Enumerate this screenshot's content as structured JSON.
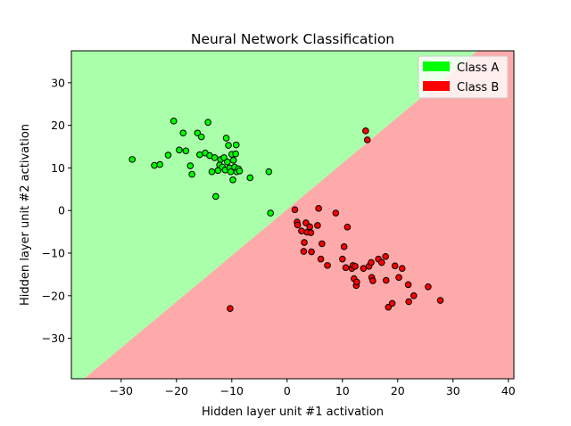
{
  "chart_data": {
    "type": "scatter",
    "title": "Neural Network Classification",
    "xlabel": "Hidden layer unit #1 activation",
    "ylabel": "Hidden layer unit #2 activation",
    "xlim": [
      -39,
      41
    ],
    "ylim": [
      -39.5,
      37.5
    ],
    "xticks": [
      -30,
      -20,
      -10,
      0,
      10,
      20,
      30,
      40
    ],
    "yticks": [
      -30,
      -20,
      -10,
      0,
      10,
      20,
      30
    ],
    "grid": false,
    "legend_position": "top-right",
    "decision_boundary": {
      "description": "straight line separating regions",
      "points": [
        [
          -36.7,
          -39.5
        ],
        [
          34.4,
          37.5
        ]
      ],
      "region_above": "Class A",
      "region_below": "Class B"
    },
    "series": [
      {
        "name": "Class A",
        "color": "#00ff00",
        "region_color": "#aaffaa",
        "points": [
          [
            -28,
            12
          ],
          [
            -24,
            10.6
          ],
          [
            -23,
            10.8
          ],
          [
            -21.5,
            13
          ],
          [
            -20.5,
            21
          ],
          [
            -19.5,
            14.2
          ],
          [
            -18.8,
            18.2
          ],
          [
            -18.3,
            14
          ],
          [
            -17.5,
            10.5
          ],
          [
            -17.2,
            8.5
          ],
          [
            -16.2,
            18.2
          ],
          [
            -15.8,
            13.1
          ],
          [
            -15.5,
            17.3
          ],
          [
            -14.8,
            13.5
          ],
          [
            -14.3,
            20.7
          ],
          [
            -14,
            12.9
          ],
          [
            -13.6,
            9.1
          ],
          [
            -13.1,
            12.4
          ],
          [
            -12.9,
            3.3
          ],
          [
            -12.5,
            9.4
          ],
          [
            -12.2,
            10.7
          ],
          [
            -12,
            12
          ],
          [
            -11.7,
            10.2
          ],
          [
            -11.4,
            12.4
          ],
          [
            -11.2,
            9.5
          ],
          [
            -11,
            17
          ],
          [
            -10.8,
            11.4
          ],
          [
            -10.6,
            15.3
          ],
          [
            -10.4,
            10
          ],
          [
            -10.2,
            9.1
          ],
          [
            -10,
            13.2
          ],
          [
            -9.8,
            7.2
          ],
          [
            -9.7,
            11.8
          ],
          [
            -9.5,
            10.2
          ],
          [
            -9.3,
            13.3
          ],
          [
            -9.2,
            15.4
          ],
          [
            -9.1,
            9.1
          ],
          [
            -8.8,
            9.8
          ],
          [
            -8.6,
            9.3
          ],
          [
            -6.7,
            7.7
          ],
          [
            -3.3,
            9.1
          ],
          [
            -3,
            -0.6
          ]
        ]
      },
      {
        "name": "Class B",
        "color": "#ff0000",
        "region_color": "#ffaaaa",
        "points": [
          [
            -10.3,
            -23
          ],
          [
            1.4,
            0.2
          ],
          [
            1.8,
            -2.7
          ],
          [
            1.9,
            -3.4
          ],
          [
            2.6,
            -4.8
          ],
          [
            3,
            -9.6
          ],
          [
            3.1,
            -7.5
          ],
          [
            3.4,
            -2.9
          ],
          [
            3.6,
            -5.1
          ],
          [
            4.1,
            -3.8
          ],
          [
            4.3,
            -5.2
          ],
          [
            4.4,
            -9.7
          ],
          [
            5.5,
            -3.5
          ],
          [
            5.7,
            0.5
          ],
          [
            6.1,
            -11.4
          ],
          [
            6.3,
            -7.8
          ],
          [
            7.3,
            -12.9
          ],
          [
            8.8,
            -0.6
          ],
          [
            10,
            -11.4
          ],
          [
            10.3,
            -8.5
          ],
          [
            10.6,
            -13.4
          ],
          [
            10.9,
            -3.9
          ],
          [
            11.7,
            -13.6
          ],
          [
            11.9,
            -12.9
          ],
          [
            12.1,
            -16
          ],
          [
            12.3,
            -13.1
          ],
          [
            12.5,
            -17.6
          ],
          [
            12.6,
            -16.8
          ],
          [
            13.8,
            -13.6
          ],
          [
            14.2,
            18.7
          ],
          [
            14.5,
            16.6
          ],
          [
            14.8,
            -13.1
          ],
          [
            15.2,
            -12.2
          ],
          [
            15.3,
            -15.7
          ],
          [
            15.5,
            -16.5
          ],
          [
            16.5,
            -11.4
          ],
          [
            17.1,
            -12.2
          ],
          [
            17.8,
            -10.8
          ],
          [
            17.9,
            -16.4
          ],
          [
            18.3,
            -22.7
          ],
          [
            19,
            -21.8
          ],
          [
            19.5,
            -13
          ],
          [
            20.2,
            -15.7
          ],
          [
            20.8,
            -13.6
          ],
          [
            21.9,
            -17.4
          ],
          [
            22,
            -21.4
          ],
          [
            22.9,
            -20
          ],
          [
            25.5,
            -17.9
          ],
          [
            27.7,
            -21.1
          ]
        ]
      }
    ]
  }
}
